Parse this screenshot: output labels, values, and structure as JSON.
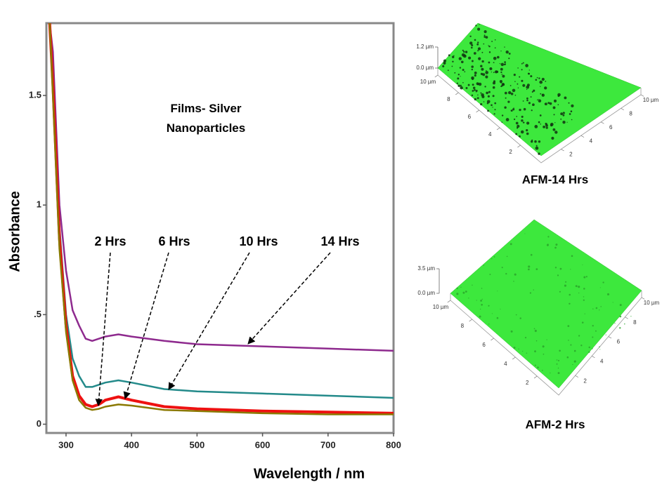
{
  "chart_data": {
    "type": "line",
    "annotation": "Films- Silver Nanoparticles",
    "x_label": "Wavelength / nm",
    "y_label": "Absorbance",
    "x": [
      275,
      280,
      290,
      300,
      310,
      320,
      330,
      340,
      350,
      360,
      380,
      400,
      450,
      500,
      600,
      700,
      800
    ],
    "series": [
      {
        "name": "2 Hrs",
        "color": "#8a7800",
        "values": [
          1.83,
          1.5,
          0.8,
          0.42,
          0.2,
          0.11,
          0.075,
          0.065,
          0.07,
          0.08,
          0.09,
          0.085,
          0.065,
          0.06,
          0.05,
          0.045,
          0.045
        ]
      },
      {
        "name": "6 Hrs",
        "color": "#ee1111",
        "values": [
          1.83,
          1.55,
          0.85,
          0.45,
          0.22,
          0.13,
          0.09,
          0.08,
          0.09,
          0.11,
          0.125,
          0.11,
          0.08,
          0.07,
          0.06,
          0.055,
          0.05
        ]
      },
      {
        "name": "10 Hrs",
        "color": "#238a8a",
        "values": [
          1.83,
          1.6,
          0.9,
          0.5,
          0.3,
          0.22,
          0.17,
          0.17,
          0.18,
          0.19,
          0.2,
          0.19,
          0.16,
          0.15,
          0.14,
          0.13,
          0.12
        ]
      },
      {
        "name": "14 Hrs",
        "color": "#8e2a8e",
        "values": [
          1.83,
          1.7,
          1.0,
          0.7,
          0.52,
          0.45,
          0.39,
          0.38,
          0.39,
          0.4,
          0.41,
          0.4,
          0.38,
          0.365,
          0.355,
          0.345,
          0.335
        ]
      }
    ],
    "xlim": [
      270,
      800
    ],
    "ylim": [
      -0.04,
      1.83
    ],
    "xticks": [
      300,
      400,
      500,
      600,
      700,
      800
    ],
    "yticks": [
      0,
      {
        "value": 0.5,
        "label": ".5"
      },
      1,
      1.5
    ]
  },
  "images": [
    {
      "caption": "AFM-14 Hrs",
      "z_ticks": [
        "1.2 µm",
        "0.0 µm"
      ],
      "left_ticks": [
        "10 µm",
        8,
        6,
        4,
        2
      ],
      "right_ticks": [
        "10 µm",
        8,
        6,
        4,
        2
      ]
    },
    {
      "caption": "AFM-2 Hrs",
      "z_ticks": [
        "3.5 µm",
        "0.0 µm"
      ],
      "left_ticks": [
        "10 µm",
        8,
        6,
        4,
        2
      ],
      "right_ticks": [
        "10 µm",
        8,
        6,
        4,
        2
      ]
    }
  ]
}
